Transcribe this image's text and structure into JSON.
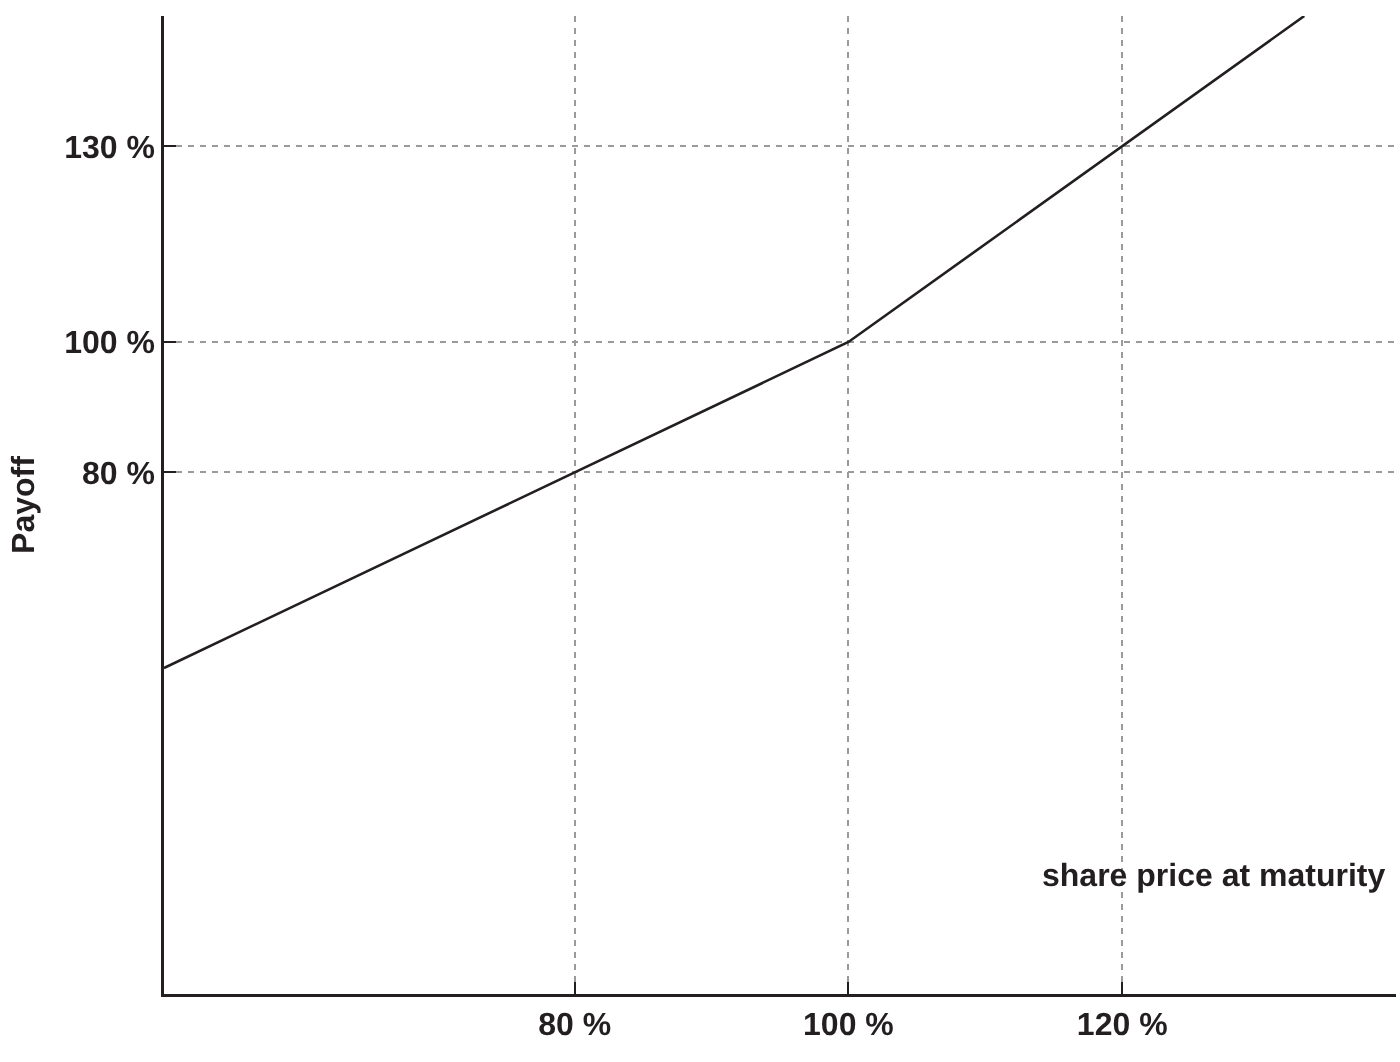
{
  "chart_data": {
    "type": "line",
    "xlabel": "share price at maturity",
    "ylabel": "Payoff",
    "x": [
      50,
      100,
      133.3
    ],
    "series": [
      {
        "color": "#231f20",
        "values": [
          50,
          100,
          150
        ]
      }
    ],
    "xlim": [
      50,
      140
    ],
    "ylim": [
      0,
      150
    ],
    "xticks": [
      {
        "value": 80,
        "label": "80 %"
      },
      {
        "value": 100,
        "label": "100 %"
      },
      {
        "value": 120,
        "label": "120 %"
      }
    ],
    "yticks": [
      {
        "value": 80,
        "label": "80 %"
      },
      {
        "value": 100,
        "label": "100 %"
      },
      {
        "value": 130,
        "label": "130 %"
      }
    ],
    "grid": true,
    "marker": "none",
    "line_style": "solid"
  }
}
